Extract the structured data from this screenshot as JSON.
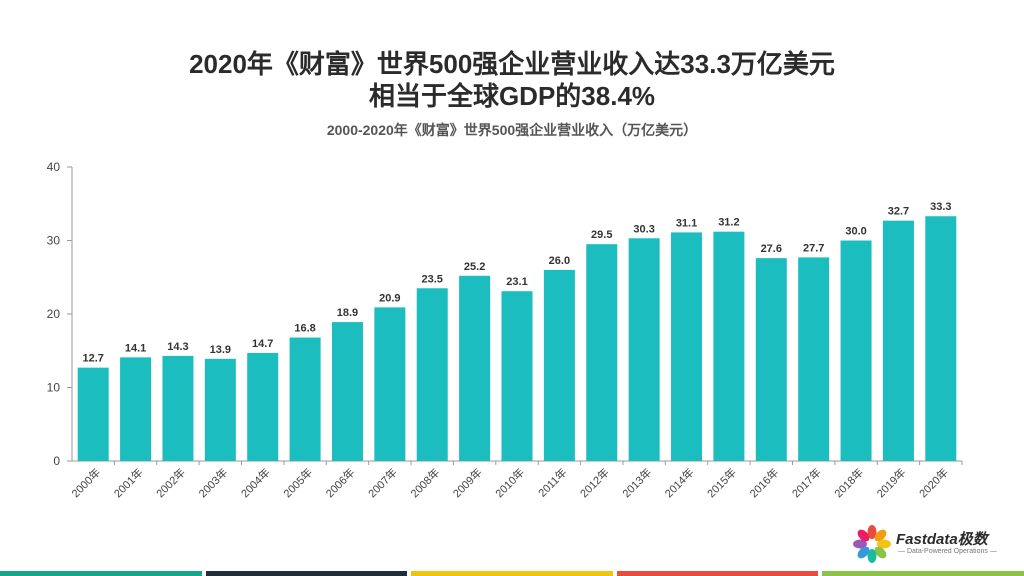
{
  "title_line1": "2020年《财富》世界500强企业营业收入达33.3万亿美元",
  "title_line2": "相当于全球GDP的38.4%",
  "chart_data": {
    "type": "bar",
    "title": "2000-2020年《财富》世界500强企业营业收入（万亿美元）",
    "categories": [
      "2000年",
      "2001年",
      "2002年",
      "2003年",
      "2004年",
      "2005年",
      "2006年",
      "2007年",
      "2008年",
      "2009年",
      "2010年",
      "2011年",
      "2012年",
      "2013年",
      "2014年",
      "2015年",
      "2016年",
      "2017年",
      "2018年",
      "2019年",
      "2020年"
    ],
    "values": [
      12.7,
      14.1,
      14.3,
      13.9,
      14.7,
      16.8,
      18.9,
      20.9,
      23.5,
      25.2,
      23.1,
      26.0,
      29.5,
      30.3,
      31.1,
      31.2,
      27.6,
      27.7,
      30.0,
      32.7,
      33.3
    ],
    "value_labels": [
      "12.7",
      "14.1",
      "14.3",
      "13.9",
      "14.7",
      "16.8",
      "18.9",
      "20.9",
      "23.5",
      "25.2",
      "23.1",
      "26.0",
      "29.5",
      "30.3",
      "31.1",
      "31.2",
      "27.6",
      "27.7",
      "30.0",
      "32.7",
      "33.3"
    ],
    "ylim": [
      0,
      40
    ],
    "yticks": [
      0,
      10,
      20,
      30,
      40
    ],
    "ytick_labels": [
      "0",
      "10",
      "20",
      "30",
      "40"
    ],
    "grid": false,
    "bar_color": "#1bbdbf"
  },
  "logo": {
    "name": "Fastdata极数",
    "tagline": "— Data-Powered Operations —",
    "icon": "flower-logo-icon"
  },
  "footer_colors": [
    "#17a589",
    "#1f2d3d",
    "#f1c40f",
    "#e74c3c",
    "#8bc34a"
  ]
}
